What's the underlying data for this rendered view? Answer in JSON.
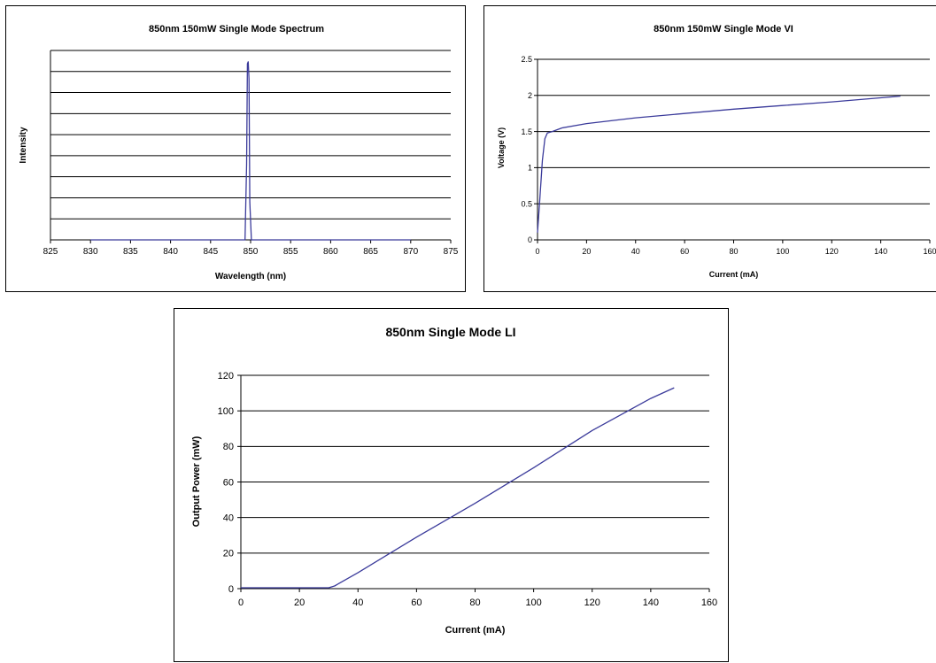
{
  "chart_data": [
    {
      "type": "line",
      "title": "850nm 150mW Single Mode Spectrum",
      "xlabel": "Wavelength (nm)",
      "ylabel": "Intensity",
      "xlim": [
        825,
        875
      ],
      "ylim": [
        0,
        1
      ],
      "x_ticks": [
        "825",
        "830",
        "835",
        "840",
        "845",
        "850",
        "855",
        "860",
        "865",
        "870",
        "875"
      ],
      "y_ticks": [],
      "grid": true,
      "series": [
        {
          "color": "#3b3b9b",
          "x": [
            830,
            840,
            849.3,
            849.5,
            849.6,
            849.7,
            849.8,
            849.9,
            850.1,
            860,
            870
          ],
          "y": [
            0.0,
            0.0,
            0.0,
            0.4,
            0.93,
            0.94,
            0.85,
            0.2,
            0.0,
            0.0,
            0.0
          ]
        }
      ]
    },
    {
      "type": "line",
      "title": "850nm 150mW Single Mode VI",
      "xlabel": "Current (mA)",
      "ylabel": "Voltage (V)",
      "xlim": [
        0,
        160
      ],
      "ylim": [
        0,
        2.5
      ],
      "x_ticks": [
        "0",
        "20",
        "40",
        "60",
        "80",
        "100",
        "120",
        "140",
        "160"
      ],
      "y_ticks": [
        "0",
        "0.5",
        "1",
        "1.5",
        "2",
        "2.5"
      ],
      "grid": true,
      "series": [
        {
          "color": "#3b3b9b",
          "x": [
            0,
            1,
            2,
            3,
            4,
            6,
            10,
            20,
            40,
            60,
            80,
            100,
            120,
            148
          ],
          "y": [
            0.1,
            0.6,
            1.1,
            1.4,
            1.48,
            1.5,
            1.55,
            1.61,
            1.69,
            1.75,
            1.81,
            1.86,
            1.91,
            1.99
          ]
        }
      ]
    },
    {
      "type": "line",
      "title": "850nm Single Mode LI",
      "xlabel": "Current (mA)",
      "ylabel": "Output Power (mW)",
      "xlim": [
        0,
        160
      ],
      "ylim": [
        0,
        120
      ],
      "x_ticks": [
        "0",
        "20",
        "40",
        "60",
        "80",
        "100",
        "120",
        "140",
        "160"
      ],
      "y_ticks": [
        "0",
        "20",
        "40",
        "60",
        "80",
        "100",
        "120"
      ],
      "grid": true,
      "series": [
        {
          "color": "#3b3b9b",
          "x": [
            0,
            30,
            32,
            40,
            60,
            80,
            100,
            120,
            140,
            148
          ],
          "y": [
            0.5,
            0.5,
            1.5,
            9,
            29,
            48,
            68,
            89,
            107,
            113
          ]
        }
      ]
    }
  ]
}
